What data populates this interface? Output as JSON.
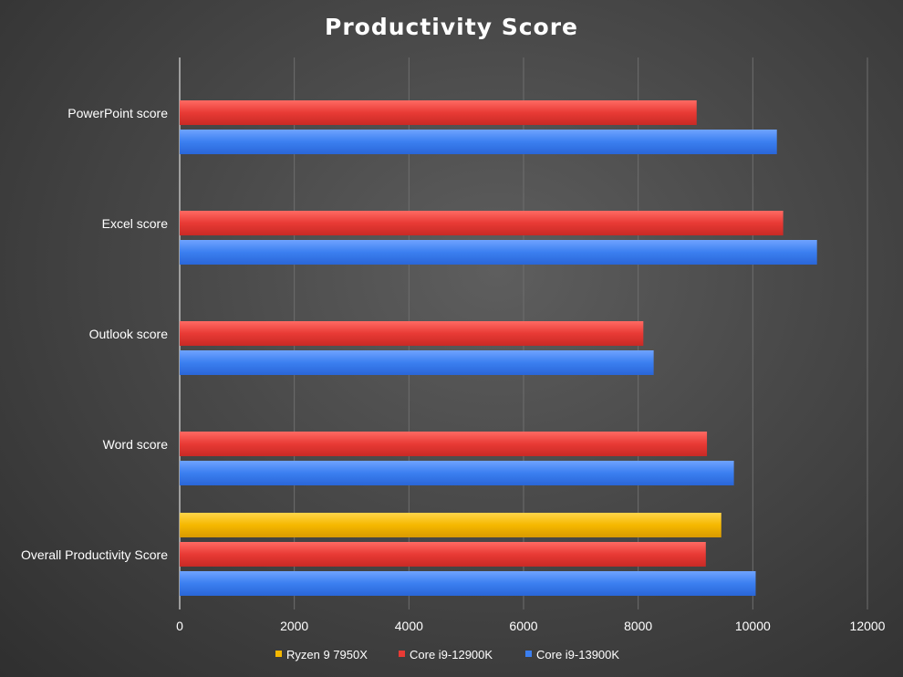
{
  "chart_data": {
    "type": "bar",
    "orientation": "horizontal",
    "title": "Productivity Score",
    "xlabel": "",
    "ylabel": "",
    "xlim": [
      0,
      12000
    ],
    "x_ticks": [
      0,
      2000,
      4000,
      6000,
      8000,
      10000,
      12000
    ],
    "x_tick_labels": [
      "0",
      "2000",
      "4000",
      "6000",
      "8000",
      "10000",
      "12000"
    ],
    "grid": true,
    "legend_position": "bottom",
    "categories": [
      "PowerPoint score",
      "Excel score",
      "Outlook score",
      "Word score",
      "Overall Productivity Score"
    ],
    "series": [
      {
        "name": "Ryzen 9 7950X",
        "color": "#f5b800",
        "values": [
          null,
          null,
          null,
          null,
          9450
        ]
      },
      {
        "name": "Core i9-12900K",
        "color": "#e83a35",
        "values": [
          9020,
          10530,
          8090,
          9200,
          9180
        ]
      },
      {
        "name": "Core i9-13900K",
        "color": "#3b7ff0",
        "values": [
          10420,
          11120,
          8270,
          9670,
          10050
        ]
      }
    ]
  }
}
